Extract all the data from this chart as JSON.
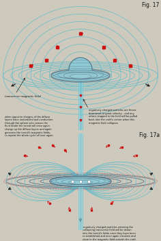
{
  "fig_title1": "Fig. 17",
  "fig_title2": "Fig. 17a",
  "bg_color": "#cdc9bc",
  "field_line_color": "#5bbccc",
  "dark_line_color": "#556677",
  "craft_fill": "#8cccd8",
  "craft_edge": "#3a5a6a",
  "beam_color": "#90d8e8",
  "red_color": "#cc1111",
  "black_color": "#111111",
  "text_color": "#111111",
  "label1": "transverse magnetic field",
  "label2": "negatively charged particles are thrust\ndownward at great velocity - and any\nothers trapped in the field will be pulled\nback into the craft's center when this\nmagnetic field collapses",
  "label3": "when opposite charges of the diffuse\nlayers have neutralized and conduction\nthrough the sphere sets ceases the\nfluid inside the toroid will once again\ncharge up the diffuse layers and again\ngenerate the toroid's magnetic fields,\nto repeat the whole cycle all over again",
  "label4": "negatively charged particles entering the\ncollapsing transverse field will be drawn\ninto the toroid's fields once they have been\nre-established and once again circulate and\nstore in the magnetic field outside the craft\nready for the next transverse field to be\ngenerated and to be discharged downward\nthrough the central vent hole"
}
